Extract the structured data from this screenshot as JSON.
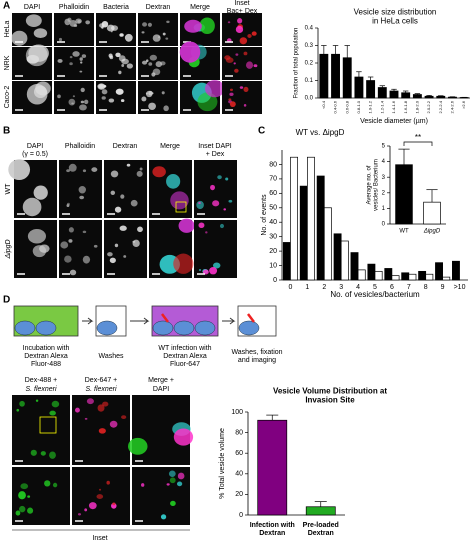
{
  "figure": {
    "panel_labels": [
      "A",
      "B",
      "C",
      "D"
    ],
    "a": {
      "columns": [
        [
          "DAPI"
        ],
        [
          "Phalloidin"
        ],
        [
          "Bacteria"
        ],
        [
          "Dextran"
        ],
        [
          "Merge"
        ],
        [
          "Inset",
          "Bac+ Dex"
        ]
      ],
      "rows": [
        "HeLa",
        "NRK",
        "Caco-2"
      ]
    },
    "b": {
      "columns": [
        [
          "DAPI",
          "(γ = 0.5)"
        ],
        [
          "Phalloidin"
        ],
        [
          "Dextran"
        ],
        [
          "Merge"
        ],
        [
          "Inset DAPI",
          "+ Dex"
        ]
      ],
      "rows": [
        "WT",
        "ΔipgD"
      ]
    },
    "d": {
      "steps": [
        "Incubation with Dextran Alexa Fluor-488",
        "Washes",
        "WT infection with Dextran Alexa Fluor-647",
        "Washes, fixation and imaging"
      ],
      "columns": [
        [
          "Dex-488 +",
          "S. flexneri"
        ],
        [
          "Dex-647 +",
          "S. flexneri"
        ],
        [
          "Merge +",
          "DAPI"
        ]
      ],
      "inset": "Inset"
    }
  },
  "chart_data": [
    {
      "type": "bar",
      "title": "Vesicle size distribution in HeLa cells",
      "ylabel": "Fraction of total population",
      "xlabel": "Vesicle diameter (µm)",
      "categories": [
        "<0.4",
        "0.4-0.6",
        "0.6-0.8",
        "0.8-1.0",
        "1.0-1.2",
        "1.2-1.4",
        "1.4-1.6",
        "1.6-1.8",
        "1.8-2.0",
        "2.0-2.2",
        "2.2-2.4",
        "2.4-2.6",
        ">2.6"
      ],
      "values": [
        0.25,
        0.25,
        0.23,
        0.12,
        0.1,
        0.06,
        0.04,
        0.03,
        0.02,
        0.01,
        0.01,
        0.005,
        0.003
      ],
      "errors": [
        0.05,
        0.05,
        0.07,
        0.03,
        0.02,
        0.01,
        0.01,
        0.01,
        0.005,
        0.005,
        0.003,
        0.002,
        0.001
      ],
      "color": "#000000",
      "ylim": [
        0,
        0.4
      ],
      "yticks": [
        {
          "value": 0,
          "label": "0.0"
        },
        0.1,
        0.2,
        0.3,
        0.4
      ]
    },
    {
      "type": "bar",
      "title": "WT vs. ΔipgD",
      "ylabel": "No. of events",
      "xlabel": "No. of vesicles/bacterium",
      "categories": [
        "0",
        "1",
        "2",
        "3",
        "4",
        "5",
        "6",
        "7",
        "8",
        "9",
        ">10"
      ],
      "series": [
        {
          "color": "#000000",
          "values": [
            26,
            65,
            72,
            32,
            19,
            11,
            8,
            5,
            6,
            12,
            13
          ]
        },
        {
          "color": "#ffffff",
          "values": [
            85,
            85,
            50,
            27,
            7,
            6,
            3,
            4,
            4,
            2,
            0
          ]
        }
      ],
      "ylim": [
        0,
        90
      ],
      "yticks": [
        0,
        10,
        20,
        30,
        40,
        50,
        60,
        70,
        80
      ]
    },
    {
      "type": "bar",
      "ylabel": "Average no. of vesicles/ Bacterium",
      "annotation": "**",
      "categories": [
        "WT",
        "ΔipgD"
      ],
      "values": [
        3.8,
        1.4
      ],
      "errors": [
        1.0,
        0.8
      ],
      "colors": [
        "#000000",
        "#ffffff"
      ],
      "ylim": [
        0,
        5
      ],
      "yticks": [
        0,
        1,
        2,
        3,
        4,
        5
      ]
    },
    {
      "type": "bar",
      "title": "Vesicle Volume Distribution at Invasion Site",
      "ylabel": "% Total vesicle volume",
      "categories": [
        "Infection with Dextran",
        "Pre-loaded Dextran"
      ],
      "values": [
        92,
        8
      ],
      "errors": [
        5,
        5
      ],
      "colors": [
        "#800080",
        "#22aa22"
      ],
      "ylim": [
        0,
        100
      ],
      "yticks": [
        0,
        20,
        40,
        60,
        80,
        100
      ]
    }
  ]
}
